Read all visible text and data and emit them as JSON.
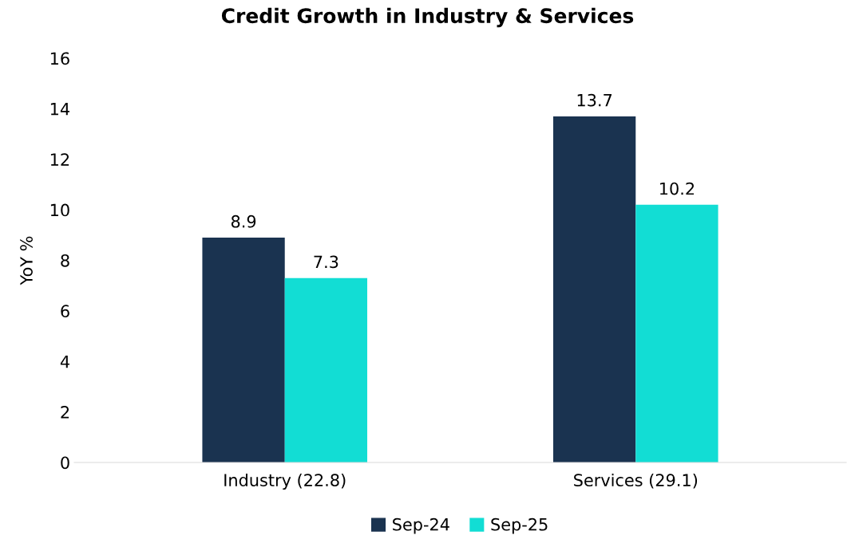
{
  "chart_data": {
    "type": "bar",
    "title": "Credit Growth in Industry & Services",
    "ylabel": "YoY %",
    "categories": [
      "Industry (22.8)",
      "Services (29.1)"
    ],
    "series": [
      {
        "name": "Sep-24",
        "color": "#1a3350",
        "values": [
          8.9,
          13.7
        ]
      },
      {
        "name": "Sep-25",
        "color": "#12ddd4",
        "values": [
          7.3,
          10.2
        ]
      }
    ],
    "ylim": [
      0,
      16
    ],
    "yticks": [
      0,
      2,
      4,
      6,
      8,
      10,
      12,
      14,
      16
    ],
    "grid": false,
    "legend": "bottom",
    "data_labels": true
  }
}
